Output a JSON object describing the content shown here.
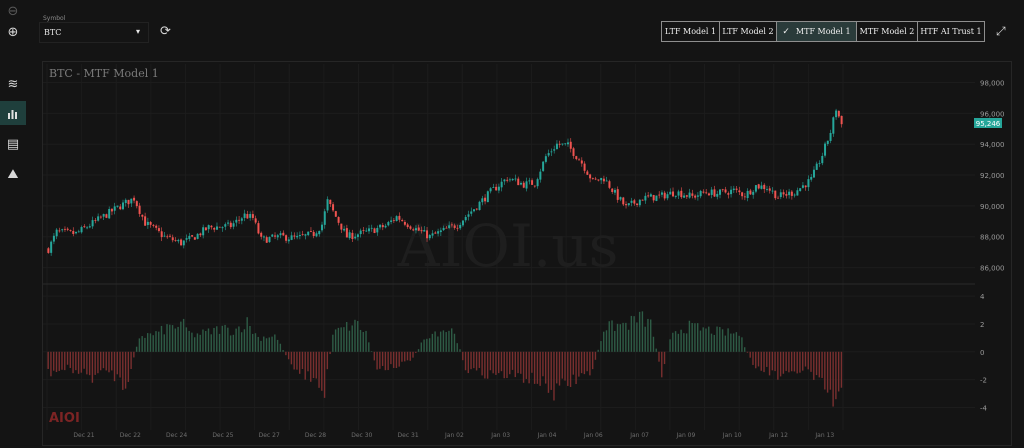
{
  "symbol": {
    "label": "Symbol",
    "value": "BTC"
  },
  "tabs": [
    "LTF Model 1",
    "LTF Model 2",
    "MTF Model 1",
    "MTF Model 2",
    "HTF AI Trust 1"
  ],
  "selected_tab": "MTF Model 1",
  "icons": [
    "minus-circle-icon",
    "plus-circle-icon",
    "waves-icon",
    "bar-chart-icon",
    "notes-icon",
    "chart-area-icon",
    "refresh-icon",
    "expand-icon"
  ],
  "colors": {
    "up": "#26a69a",
    "down": "#ef5350",
    "price_tag": "#26a69a",
    "osc_up": "#2e5c46",
    "osc_down": "#7a2f2f",
    "selected_tab_bg": "#2a3b3a"
  },
  "watermark": "AIOI.us",
  "logo": "AIOI",
  "chart_data": {
    "type": "candlestick",
    "title": "BTC - MTF Model 1",
    "price_axis": {
      "ticks": [
        98000,
        96000,
        94000,
        92000,
        90000,
        88000,
        86000
      ],
      "ylim": [
        85000,
        99200
      ]
    },
    "last_price": "95,246",
    "price_path": [
      [
        0,
        87200
      ],
      [
        3,
        88300
      ],
      [
        10,
        88200
      ],
      [
        18,
        89100
      ],
      [
        26,
        90000
      ],
      [
        31,
        90500
      ],
      [
        35,
        88900
      ],
      [
        42,
        88000
      ],
      [
        48,
        87600
      ],
      [
        52,
        87900
      ],
      [
        58,
        88600
      ],
      [
        66,
        88700
      ],
      [
        71,
        89400
      ],
      [
        74,
        89200
      ],
      [
        77,
        87800
      ],
      [
        84,
        88000
      ],
      [
        90,
        87900
      ],
      [
        96,
        88200
      ],
      [
        99,
        88800
      ],
      [
        101,
        90300
      ],
      [
        104,
        89300
      ],
      [
        108,
        88000
      ],
      [
        115,
        88300
      ],
      [
        122,
        88700
      ],
      [
        126,
        89300
      ],
      [
        132,
        88600
      ],
      [
        138,
        88000
      ],
      [
        148,
        88800
      ],
      [
        155,
        90000
      ],
      [
        160,
        90900
      ],
      [
        166,
        91800
      ],
      [
        172,
        91400
      ],
      [
        176,
        91500
      ],
      [
        180,
        93200
      ],
      [
        184,
        94000
      ],
      [
        188,
        93900
      ],
      [
        193,
        92800
      ],
      [
        197,
        91600
      ],
      [
        201,
        91800
      ],
      [
        205,
        90800
      ],
      [
        209,
        89900
      ],
      [
        215,
        90500
      ],
      [
        221,
        90600
      ],
      [
        227,
        90900
      ],
      [
        233,
        90600
      ],
      [
        238,
        90900
      ],
      [
        242,
        90800
      ],
      [
        248,
        91000
      ],
      [
        252,
        90700
      ],
      [
        256,
        91300
      ],
      [
        260,
        91200
      ],
      [
        264,
        90600
      ],
      [
        270,
        90900
      ],
      [
        276,
        91700
      ],
      [
        280,
        93300
      ],
      [
        283,
        94800
      ],
      [
        285,
        96300
      ],
      [
        287,
        95300
      ]
    ],
    "oscillator": {
      "axis_ticks": [
        4,
        2,
        0,
        -2,
        -4
      ],
      "ylim": [
        -4.9,
        4.8
      ],
      "path": [
        [
          0,
          -1.5
        ],
        [
          8,
          -1.2
        ],
        [
          16,
          -1.8
        ],
        [
          22,
          -1.3
        ],
        [
          28,
          -2.5
        ],
        [
          33,
          1.1
        ],
        [
          39,
          1.3
        ],
        [
          44,
          1.8
        ],
        [
          49,
          1.9
        ],
        [
          52,
          1.2
        ],
        [
          58,
          1.4
        ],
        [
          63,
          1.7
        ],
        [
          67,
          1.5
        ],
        [
          72,
          2.1
        ],
        [
          76,
          1.0
        ],
        [
          82,
          1.2
        ],
        [
          88,
          -0.9
        ],
        [
          92,
          -1.5
        ],
        [
          96,
          -2.0
        ],
        [
          100,
          -3.0
        ],
        [
          103,
          1.3
        ],
        [
          108,
          1.8
        ],
        [
          112,
          2.0
        ],
        [
          115,
          1.3
        ],
        [
          119,
          -1.2
        ],
        [
          125,
          -1.0
        ],
        [
          131,
          -0.7
        ],
        [
          137,
          1.2
        ],
        [
          143,
          1.6
        ],
        [
          147,
          1.5
        ],
        [
          151,
          -1.2
        ],
        [
          156,
          -1.5
        ],
        [
          162,
          -1.6
        ],
        [
          168,
          -1.7
        ],
        [
          174,
          -1.9
        ],
        [
          178,
          -2.2
        ],
        [
          183,
          -2.9
        ],
        [
          188,
          -2.3
        ],
        [
          193,
          -1.7
        ],
        [
          197,
          -1.4
        ],
        [
          201,
          1.7
        ],
        [
          206,
          1.9
        ],
        [
          210,
          2.0
        ],
        [
          214,
          2.5
        ],
        [
          218,
          2.0
        ],
        [
          222,
          -1.5
        ],
        [
          226,
          1.5
        ],
        [
          232,
          1.8
        ],
        [
          238,
          1.6
        ],
        [
          244,
          1.4
        ],
        [
          250,
          1.3
        ],
        [
          255,
          -1.0
        ],
        [
          260,
          -1.4
        ],
        [
          266,
          -1.9
        ],
        [
          270,
          -1.5
        ],
        [
          274,
          -1.2
        ],
        [
          278,
          -2.1
        ],
        [
          282,
          -2.8
        ],
        [
          284,
          -3.7
        ],
        [
          287,
          -3.2
        ]
      ]
    },
    "x_axis": {
      "tick_labels": [
        "Dec 21",
        "Dec 22",
        "Dec 24",
        "Dec 25",
        "Dec 27",
        "Dec 28",
        "Dec 30",
        "Dec 31",
        "Jan 02",
        "Jan 03",
        "Jan 04",
        "Jan 06",
        "Jan 07",
        "Jan 09",
        "Jan 10",
        "Jan 12",
        "Jan 13"
      ]
    }
  }
}
